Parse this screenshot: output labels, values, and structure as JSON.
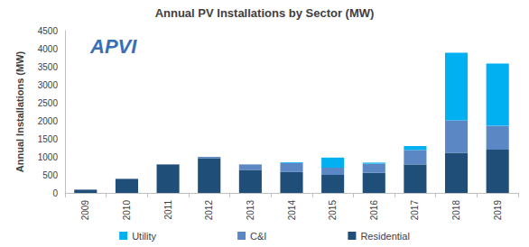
{
  "chart_data": {
    "type": "bar",
    "title": "Annual PV Installations by Sector (MW)",
    "y_label": "Annual Installations (MW)",
    "annotations": [
      "APVI"
    ],
    "categories": [
      "2009",
      "2010",
      "2011",
      "2012",
      "2013",
      "2014",
      "2015",
      "2016",
      "2017",
      "2018",
      "2019"
    ],
    "series": [
      {
        "name": "Utility",
        "color": "#00b0f0",
        "values": [
          0,
          0,
          0,
          0,
          0,
          20,
          280,
          30,
          110,
          1880,
          1730
        ]
      },
      {
        "name": "C&I",
        "color": "#5b87c5",
        "values": [
          0,
          0,
          0,
          40,
          150,
          250,
          200,
          250,
          400,
          900,
          660
        ]
      },
      {
        "name": "Residential",
        "color": "#1f4e79",
        "values": [
          90,
          390,
          790,
          960,
          640,
          580,
          500,
          560,
          790,
          1110,
          1200
        ]
      }
    ],
    "stacked": true,
    "ylim": [
      0,
      4500
    ],
    "yticks": [
      0,
      500,
      1000,
      1500,
      2000,
      2500,
      3000,
      3500,
      4000,
      4500
    ],
    "grid": false,
    "legend": "bottom"
  }
}
